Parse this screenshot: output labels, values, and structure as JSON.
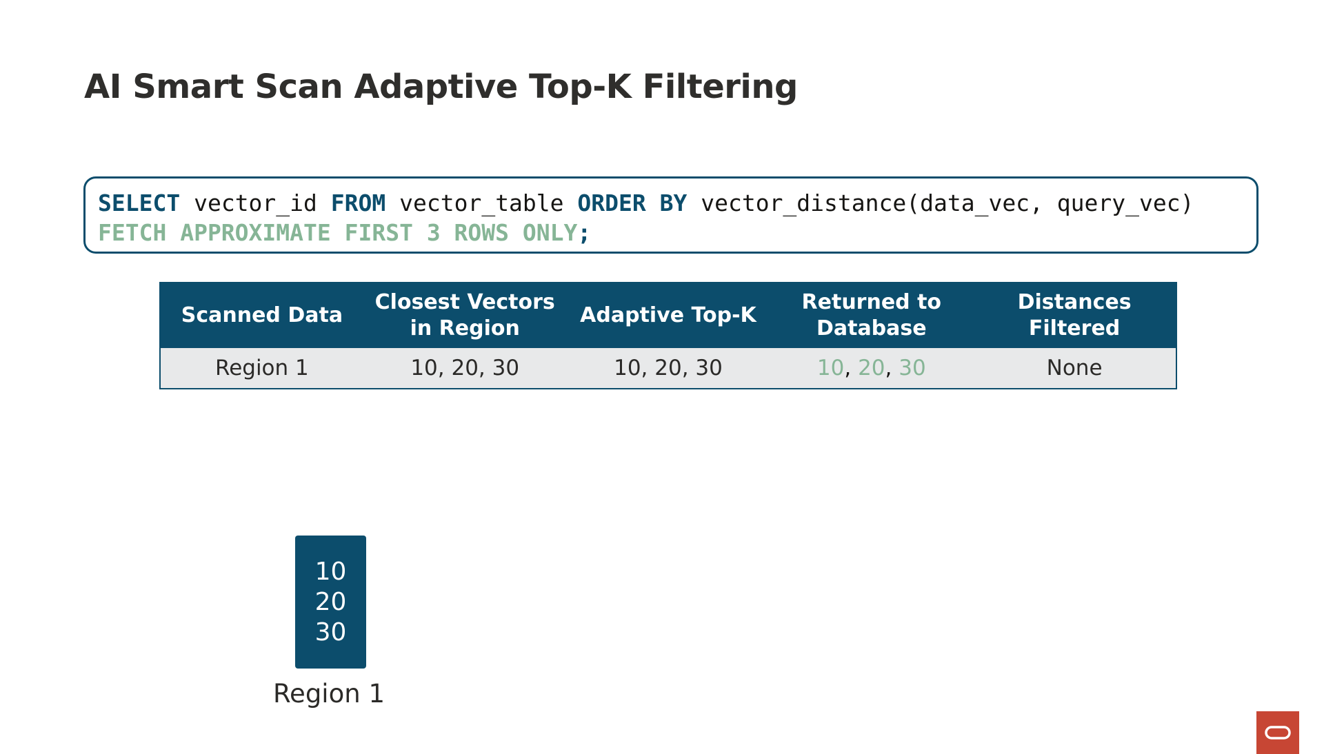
{
  "title": "AI Smart Scan Adaptive Top-K Filtering",
  "code": {
    "lines": [
      [
        {
          "text": "SELECT",
          "color": "#0c4d6c"
        },
        {
          "text": " vector_id ",
          "color": "#161513"
        },
        {
          "text": "FROM",
          "color": "#0c4d6c"
        },
        {
          "text": " vector_table ",
          "color": "#161513"
        },
        {
          "text": "ORDER BY",
          "color": "#0c4d6c"
        },
        {
          "text": " vector_distance(data_vec, query_vec)",
          "color": "#161513"
        }
      ],
      [
        {
          "text": "FETCH APPROXIMATE FIRST 3 ROWS ONLY",
          "color": "#86b596"
        },
        {
          "text": ";",
          "color": "#0c4d6c"
        }
      ]
    ]
  },
  "table": {
    "header": [
      "Scanned Data",
      "Closest Vectors in Region",
      "Adaptive Top-K",
      "Returned to Database",
      "Distances Filtered"
    ],
    "rows": [
      [
        "Region 1",
        "10, 20, 30",
        "10, 20, 30",
        [
          {
            "text": "10",
            "color": "#86b596"
          },
          {
            "text": ", ",
            "color": "#161513"
          },
          {
            "text": "20",
            "color": "#86b596"
          },
          {
            "text": ", ",
            "color": "#161513"
          },
          {
            "text": "30",
            "color": "#86b596"
          }
        ],
        "None"
      ]
    ]
  },
  "region": {
    "values": [
      10,
      20,
      30
    ],
    "label": "Region 1"
  }
}
